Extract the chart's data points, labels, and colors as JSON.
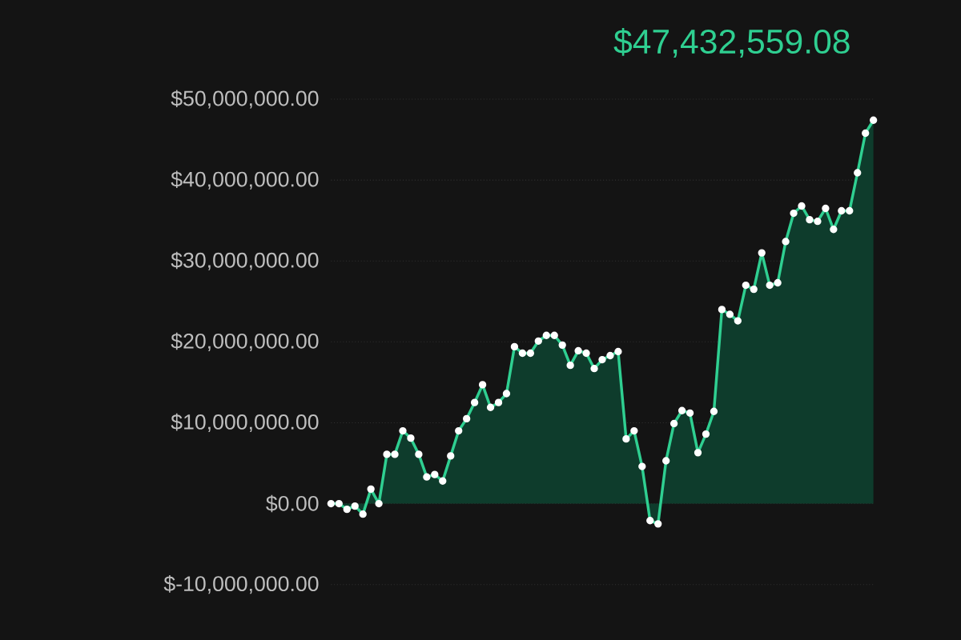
{
  "chart_data": {
    "type": "area",
    "title": "$47,432,559.08",
    "categories": [
      null,
      null,
      null,
      null,
      null,
      null,
      null,
      null,
      null,
      null,
      null,
      null,
      null,
      null,
      null,
      null,
      null,
      null,
      null,
      null,
      null,
      null,
      null,
      null,
      null,
      null,
      null,
      null,
      null,
      null,
      null,
      null,
      null,
      null,
      null,
      null,
      null,
      null,
      null,
      null,
      null,
      null,
      null,
      null,
      null,
      null,
      null,
      null,
      null,
      null,
      null,
      null,
      null,
      null,
      null,
      null,
      null,
      null,
      null,
      null,
      null,
      null,
      null,
      null,
      null,
      null,
      null,
      null,
      null
    ],
    "series": [
      {
        "color": "#2fcf91",
        "values": [
          0,
          0,
          -700000,
          -300000,
          -1300000,
          1800000,
          0,
          6100000,
          6100000,
          9000000,
          8100000,
          6100000,
          3300000,
          3600000,
          2800000,
          5900000,
          9000000,
          10500000,
          12500000,
          14700000,
          11900000,
          12500000,
          13600000,
          19400000,
          18600000,
          18600000,
          20100000,
          20800000,
          20800000,
          19600000,
          17100000,
          18900000,
          18600000,
          16700000,
          17800000,
          18300000,
          18800000,
          8000000,
          9000000,
          4600000,
          -2100000,
          -2500000,
          5300000,
          9900000,
          11500000,
          11200000,
          6300000,
          8600000,
          11400000,
          24000000,
          23400000,
          22600000,
          27000000,
          26500000,
          31000000,
          27000000,
          27300000,
          32400000,
          35900000,
          36800000,
          35100000,
          34900000,
          36500000,
          33900000,
          36200000,
          36200000,
          40900000,
          45800000,
          47400000
        ]
      }
    ],
    "ylim": [
      -10000000,
      50000000
    ],
    "yticks": [
      {
        "value": -10000000,
        "label": "$-10,000,000.00"
      },
      {
        "value": 0,
        "label": "$0.00"
      },
      {
        "value": 10000000,
        "label": "$10,000,000.00"
      },
      {
        "value": 20000000,
        "label": "$20,000,000.00"
      },
      {
        "value": 30000000,
        "label": "$30,000,000.00"
      },
      {
        "value": 40000000,
        "label": "$40,000,000.00"
      },
      {
        "value": 50000000,
        "label": "$50,000,000.00"
      }
    ],
    "tick_labels": "y",
    "grid": "y",
    "marker": "circle",
    "line_style": "solid"
  }
}
